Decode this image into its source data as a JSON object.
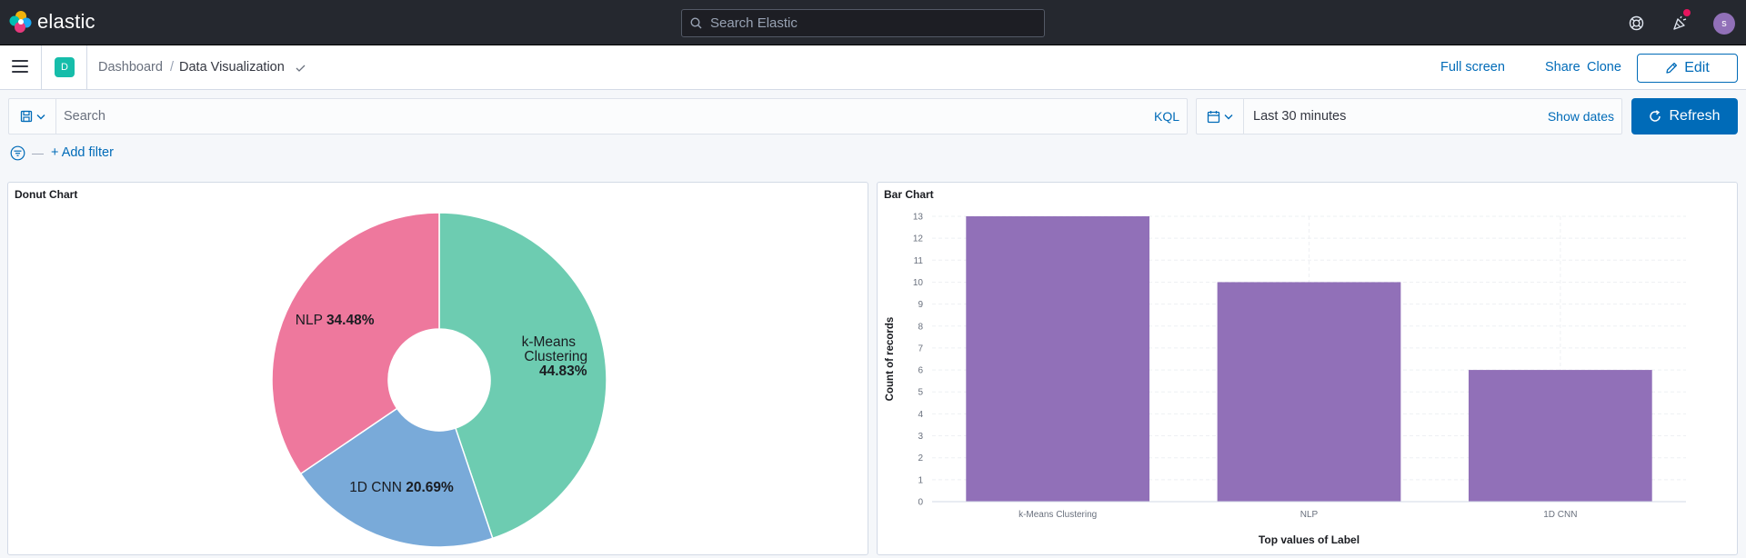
{
  "header": {
    "brand": "elastic",
    "search_placeholder": "Search Elastic",
    "help_icon": "help-lifebuoy-icon",
    "news_icon": "newsfeed-cheer-icon",
    "avatar_initial": "s"
  },
  "navbar": {
    "space_initial": "D",
    "breadcrumb_parent": "Dashboard",
    "breadcrumb_separator": "/",
    "breadcrumb_current": "Data Visualization",
    "full_screen": "Full screen",
    "share": "Share",
    "clone": "Clone",
    "edit": "Edit"
  },
  "query": {
    "placeholder": "Search",
    "language": "KQL",
    "time_range": "Last 30 minutes",
    "show_dates": "Show dates",
    "refresh": "Refresh",
    "add_filter": "+ Add filter"
  },
  "colors": {
    "accent": "#006bb8",
    "teal": "#6dccb1",
    "blue": "#79aad9",
    "pink": "#ee789d",
    "purple": "#9170b8"
  },
  "chart_data": [
    {
      "type": "pie",
      "donut": true,
      "panel_title": "Donut Chart",
      "slices": [
        {
          "label": "k-Means Clustering",
          "label_lines": [
            "k-Means",
            "Clustering"
          ],
          "percent_text": "44.83%",
          "value": 13,
          "color": "#6dccb1"
        },
        {
          "label": "1D CNN",
          "label_lines": [
            "1D CNN"
          ],
          "percent_text": "20.69%",
          "value": 6,
          "color": "#79aad9"
        },
        {
          "label": "NLP",
          "label_lines": [
            "NLP"
          ],
          "percent_text": "34.48%",
          "value": 10,
          "color": "#ee789d"
        }
      ]
    },
    {
      "type": "bar",
      "panel_title": "Bar Chart",
      "categories": [
        "k-Means Clustering",
        "NLP",
        "1D CNN"
      ],
      "values": [
        13,
        10,
        6
      ],
      "xlabel": "Top values of Label",
      "ylabel": "Count of records",
      "ylim": [
        0,
        13
      ],
      "yticks": [
        0,
        1,
        2,
        3,
        4,
        5,
        6,
        7,
        8,
        9,
        10,
        11,
        12,
        13
      ],
      "bar_color": "#9170b8",
      "grid": true
    }
  ]
}
